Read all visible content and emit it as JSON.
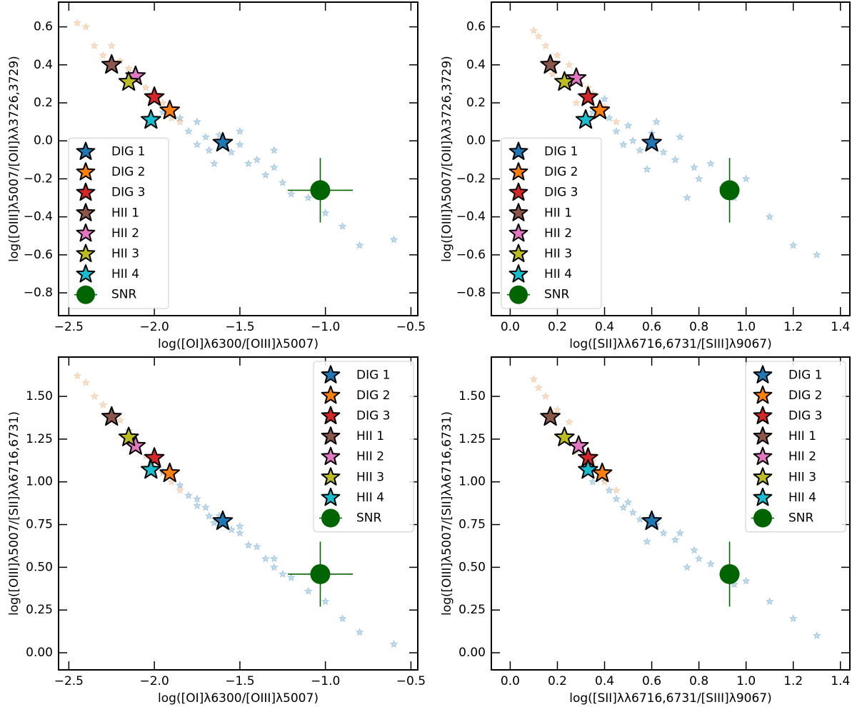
{
  "chart_data": [
    {
      "type": "scatter",
      "xlabel": "log([OI]λ6300/[OIII]λ5007)",
      "ylabel": "log([OIII]λ5007/[OII]λλ3726,3729)",
      "xlim": [
        -2.56,
        -0.46
      ],
      "ylim": [
        -0.92,
        0.73
      ],
      "xticks": [
        {
          "value": -2.5,
          "label": "−2.5"
        },
        {
          "value": -2.0,
          "label": "−2.0"
        },
        {
          "value": -1.5,
          "label": "−1.5"
        },
        {
          "value": -1.0,
          "label": "−1.0"
        },
        {
          "value": -0.5,
          "label": "−0.5"
        }
      ],
      "yticks": [
        {
          "value": -0.8,
          "label": "−0.8"
        },
        {
          "value": -0.6,
          "label": "−0.6"
        },
        {
          "value": -0.4,
          "label": "−0.4"
        },
        {
          "value": -0.2,
          "label": "−0.2"
        },
        {
          "value": 0,
          "label": "0.0"
        },
        0.2,
        0.4,
        0.6
      ],
      "legend": "lower left",
      "background": [
        {
          "color": "#1f77b4",
          "x": [
            -1.95,
            -1.85,
            -1.8,
            -1.75,
            -1.7,
            -1.68,
            -1.62,
            -1.55,
            -1.5,
            -1.45,
            -1.4,
            -1.35,
            -1.3,
            -1.25,
            -1.2,
            -1.1,
            -1.0,
            -0.9,
            -0.8,
            -0.6,
            -1.75,
            -1.5,
            -1.3,
            -1.65
          ],
          "y": [
            0.15,
            0.12,
            0.05,
            0.1,
            0.02,
            -0.05,
            0.03,
            -0.06,
            -0.02,
            -0.12,
            -0.1,
            -0.18,
            -0.14,
            -0.22,
            -0.28,
            -0.3,
            -0.38,
            -0.45,
            -0.55,
            -0.52,
            -0.02,
            0.05,
            -0.05,
            -0.12
          ]
        },
        {
          "color": "#e08a3c",
          "x": [
            -2.4,
            -2.35,
            -2.3,
            -2.2,
            -2.15,
            -2.1,
            -2.05,
            -1.95,
            -1.9,
            -1.85,
            -2.45,
            -2.25
          ],
          "y": [
            0.6,
            0.5,
            0.45,
            0.42,
            0.38,
            0.32,
            0.28,
            0.2,
            0.12,
            0.1,
            0.62,
            0.5
          ]
        }
      ],
      "series": [
        {
          "name": "DIG 1",
          "color": "#1f77b4",
          "marker": "*",
          "x": [
            -1.6
          ],
          "y": [
            -0.01
          ]
        },
        {
          "name": "DIG 2",
          "color": "#ff7f0e",
          "marker": "*",
          "x": [
            -1.91
          ],
          "y": [
            0.16
          ]
        },
        {
          "name": "DIG 3",
          "color": "#d62728",
          "marker": "*",
          "x": [
            -2.0
          ],
          "y": [
            0.23
          ]
        },
        {
          "name": "HII 1",
          "color": "#8c564b",
          "marker": "*",
          "x": [
            -2.25
          ],
          "y": [
            0.4
          ]
        },
        {
          "name": "HII 2",
          "color": "#e377c2",
          "marker": "*",
          "x": [
            -2.11
          ],
          "y": [
            0.34
          ]
        },
        {
          "name": "HII 3",
          "color": "#bcbd22",
          "marker": "*",
          "x": [
            -2.15
          ],
          "y": [
            0.31
          ]
        },
        {
          "name": "HII 4",
          "color": "#17becf",
          "marker": "*",
          "x": [
            -2.02
          ],
          "y": [
            0.11
          ]
        },
        {
          "name": "SNR",
          "color": "#006400",
          "marker": "o",
          "x": [
            -1.03
          ],
          "y": [
            -0.26
          ],
          "xerr": [
            0.19
          ],
          "yerr": [
            0.17
          ]
        }
      ]
    },
    {
      "type": "scatter",
      "xlabel": "log([SII]λλ6716,6731/[SIII]λ9067)",
      "ylabel": "log([OIII]λ5007/[OII]λλ3726,3729)",
      "xlim": [
        -0.08,
        1.44
      ],
      "ylim": [
        -0.92,
        0.73
      ],
      "xticks": [
        {
          "value": 0,
          "label": "0.0"
        },
        0.2,
        0.4,
        0.6,
        0.8,
        {
          "value": 1.0,
          "label": "1.0"
        },
        1.2,
        1.4
      ],
      "yticks": [
        {
          "value": -0.8,
          "label": "−0.8"
        },
        {
          "value": -0.6,
          "label": "−0.6"
        },
        {
          "value": -0.4,
          "label": "−0.4"
        },
        {
          "value": -0.2,
          "label": "−0.2"
        },
        {
          "value": 0,
          "label": "0.0"
        },
        0.2,
        0.4,
        0.6
      ],
      "legend": "lower left",
      "background": [
        {
          "color": "#1f77b4",
          "x": [
            0.35,
            0.42,
            0.45,
            0.5,
            0.52,
            0.55,
            0.6,
            0.65,
            0.7,
            0.72,
            0.78,
            0.8,
            0.85,
            0.9,
            0.95,
            1.0,
            1.1,
            1.2,
            1.3,
            0.48,
            0.62,
            0.75,
            0.4,
            0.58
          ],
          "y": [
            0.15,
            0.12,
            0.05,
            0.08,
            0.0,
            -0.05,
            0.04,
            -0.06,
            -0.1,
            0.02,
            -0.14,
            -0.2,
            -0.12,
            -0.25,
            -0.3,
            -0.2,
            -0.4,
            -0.55,
            -0.6,
            -0.02,
            0.1,
            -0.3,
            0.22,
            -0.15
          ]
        },
        {
          "color": "#e08a3c",
          "x": [
            0.1,
            0.15,
            0.2,
            0.25,
            0.3,
            0.35,
            0.28,
            0.4,
            0.45,
            0.18,
            0.12,
            0.33
          ],
          "y": [
            0.58,
            0.5,
            0.45,
            0.4,
            0.3,
            0.25,
            0.2,
            0.18,
            0.1,
            0.35,
            0.55,
            0.28
          ]
        }
      ],
      "series": [
        {
          "name": "DIG 1",
          "color": "#1f77b4",
          "marker": "*",
          "x": [
            0.6
          ],
          "y": [
            -0.01
          ]
        },
        {
          "name": "DIG 2",
          "color": "#ff7f0e",
          "marker": "*",
          "x": [
            0.38
          ],
          "y": [
            0.16
          ]
        },
        {
          "name": "DIG 3",
          "color": "#d62728",
          "marker": "*",
          "x": [
            0.33
          ],
          "y": [
            0.23
          ]
        },
        {
          "name": "HII 1",
          "color": "#8c564b",
          "marker": "*",
          "x": [
            0.17
          ],
          "y": [
            0.4
          ]
        },
        {
          "name": "HII 2",
          "color": "#e377c2",
          "marker": "*",
          "x": [
            0.28
          ],
          "y": [
            0.33
          ]
        },
        {
          "name": "HII 3",
          "color": "#bcbd22",
          "marker": "*",
          "x": [
            0.23
          ],
          "y": [
            0.31
          ]
        },
        {
          "name": "HII 4",
          "color": "#17becf",
          "marker": "*",
          "x": [
            0.32
          ],
          "y": [
            0.11
          ]
        },
        {
          "name": "SNR",
          "color": "#006400",
          "marker": "o",
          "x": [
            0.93
          ],
          "y": [
            -0.26
          ],
          "xerr": [
            0.04
          ],
          "yerr": [
            0.17
          ]
        }
      ]
    },
    {
      "type": "scatter",
      "xlabel": "log([OI]λ6300/[OIII]λ5007)",
      "ylabel": "log([OIII]λ5007/[SII]λλ6716,6731)",
      "xlim": [
        -2.56,
        -0.46
      ],
      "ylim": [
        -0.1,
        1.73
      ],
      "xticks": [
        {
          "value": -2.5,
          "label": "−2.5"
        },
        {
          "value": -2.0,
          "label": "−2.0"
        },
        {
          "value": -1.5,
          "label": "−1.5"
        },
        {
          "value": -1.0,
          "label": "−1.0"
        },
        {
          "value": -0.5,
          "label": "−0.5"
        }
      ],
      "yticks": [
        {
          "value": 0,
          "label": "0.00"
        },
        0.25,
        {
          "value": 0.5,
          "label": "0.50"
        },
        0.75,
        {
          "value": 1.0,
          "label": "1.00"
        },
        1.25,
        {
          "value": 1.5,
          "label": "1.50"
        }
      ],
      "legend": "upper right",
      "background": [
        {
          "color": "#1f77b4",
          "x": [
            -1.95,
            -1.85,
            -1.8,
            -1.75,
            -1.7,
            -1.68,
            -1.62,
            -1.55,
            -1.5,
            -1.45,
            -1.4,
            -1.35,
            -1.3,
            -1.25,
            -1.2,
            -1.1,
            -1.0,
            -0.9,
            -0.8,
            -0.6,
            -1.75,
            -1.5,
            -1.3,
            -1.65
          ],
          "y": [
            1.06,
            0.98,
            0.92,
            0.9,
            0.85,
            0.8,
            0.8,
            0.72,
            0.7,
            0.63,
            0.62,
            0.55,
            0.55,
            0.46,
            0.44,
            0.36,
            0.3,
            0.2,
            0.12,
            0.05,
            0.86,
            0.74,
            0.5,
            0.76
          ]
        },
        {
          "color": "#e08a3c",
          "x": [
            -2.4,
            -2.35,
            -2.3,
            -2.2,
            -2.15,
            -2.1,
            -2.05,
            -1.95,
            -1.9,
            -1.85,
            -2.45,
            -2.25
          ],
          "y": [
            1.58,
            1.5,
            1.45,
            1.36,
            1.3,
            1.22,
            1.15,
            1.05,
            1.0,
            0.95,
            1.62,
            1.4
          ]
        }
      ],
      "series": [
        {
          "name": "DIG 1",
          "color": "#1f77b4",
          "marker": "*",
          "x": [
            -1.6
          ],
          "y": [
            0.77
          ]
        },
        {
          "name": "DIG 2",
          "color": "#ff7f0e",
          "marker": "*",
          "x": [
            -1.91
          ],
          "y": [
            1.05
          ]
        },
        {
          "name": "DIG 3",
          "color": "#d62728",
          "marker": "*",
          "x": [
            -2.0
          ],
          "y": [
            1.14
          ]
        },
        {
          "name": "HII 1",
          "color": "#8c564b",
          "marker": "*",
          "x": [
            -2.25
          ],
          "y": [
            1.38
          ]
        },
        {
          "name": "HII 2",
          "color": "#e377c2",
          "marker": "*",
          "x": [
            -2.11
          ],
          "y": [
            1.21
          ]
        },
        {
          "name": "HII 3",
          "color": "#bcbd22",
          "marker": "*",
          "x": [
            -2.15
          ],
          "y": [
            1.26
          ]
        },
        {
          "name": "HII 4",
          "color": "#17becf",
          "marker": "*",
          "x": [
            -2.02
          ],
          "y": [
            1.07
          ]
        },
        {
          "name": "SNR",
          "color": "#006400",
          "marker": "o",
          "x": [
            -1.03
          ],
          "y": [
            0.46
          ],
          "xerr": [
            0.19
          ],
          "yerr": [
            0.19
          ]
        }
      ]
    },
    {
      "type": "scatter",
      "xlabel": "log([SII]λλ6716,6731/[SIII]λ9067)",
      "ylabel": "log([OIII]λ5007/[SII]λλ6716,6731)",
      "xlim": [
        -0.08,
        1.44
      ],
      "ylim": [
        -0.1,
        1.73
      ],
      "xticks": [
        {
          "value": 0,
          "label": "0.0"
        },
        0.2,
        0.4,
        0.6,
        0.8,
        {
          "value": 1.0,
          "label": "1.0"
        },
        1.2,
        1.4
      ],
      "yticks": [
        {
          "value": 0,
          "label": "0.00"
        },
        0.25,
        {
          "value": 0.5,
          "label": "0.50"
        },
        0.75,
        {
          "value": 1.0,
          "label": "1.00"
        },
        1.25,
        {
          "value": 1.5,
          "label": "1.50"
        }
      ],
      "legend": "upper right",
      "background": [
        {
          "color": "#1f77b4",
          "x": [
            0.35,
            0.42,
            0.45,
            0.5,
            0.52,
            0.55,
            0.6,
            0.65,
            0.7,
            0.72,
            0.78,
            0.8,
            0.85,
            0.9,
            0.95,
            1.0,
            1.1,
            1.2,
            1.3,
            0.48,
            0.62,
            0.75,
            0.4,
            0.58
          ],
          "y": [
            1.0,
            0.95,
            0.9,
            0.88,
            0.82,
            0.78,
            0.8,
            0.7,
            0.66,
            0.7,
            0.6,
            0.55,
            0.52,
            0.45,
            0.4,
            0.42,
            0.3,
            0.2,
            0.1,
            0.85,
            0.75,
            0.5,
            1.02,
            0.65
          ]
        },
        {
          "color": "#e08a3c",
          "x": [
            0.1,
            0.15,
            0.2,
            0.25,
            0.3,
            0.35,
            0.28,
            0.4,
            0.45,
            0.18,
            0.12,
            0.33
          ],
          "y": [
            1.6,
            1.5,
            1.42,
            1.35,
            1.2,
            1.12,
            1.18,
            1.0,
            0.95,
            1.4,
            1.55,
            1.1
          ]
        }
      ],
      "series": [
        {
          "name": "DIG 1",
          "color": "#1f77b4",
          "marker": "*",
          "x": [
            0.6
          ],
          "y": [
            0.77
          ]
        },
        {
          "name": "DIG 2",
          "color": "#ff7f0e",
          "marker": "*",
          "x": [
            0.39
          ],
          "y": [
            1.05
          ]
        },
        {
          "name": "DIG 3",
          "color": "#d62728",
          "marker": "*",
          "x": [
            0.33
          ],
          "y": [
            1.14
          ]
        },
        {
          "name": "HII 1",
          "color": "#8c564b",
          "marker": "*",
          "x": [
            0.17
          ],
          "y": [
            1.38
          ]
        },
        {
          "name": "HII 2",
          "color": "#e377c2",
          "marker": "*",
          "x": [
            0.29
          ],
          "y": [
            1.21
          ]
        },
        {
          "name": "HII 3",
          "color": "#bcbd22",
          "marker": "*",
          "x": [
            0.23
          ],
          "y": [
            1.26
          ]
        },
        {
          "name": "HII 4",
          "color": "#17becf",
          "marker": "*",
          "x": [
            0.33
          ],
          "y": [
            1.07
          ]
        },
        {
          "name": "SNR",
          "color": "#006400",
          "marker": "o",
          "x": [
            0.93
          ],
          "y": [
            0.46
          ],
          "xerr": [
            0.04
          ],
          "yerr": [
            0.19
          ]
        }
      ]
    }
  ]
}
